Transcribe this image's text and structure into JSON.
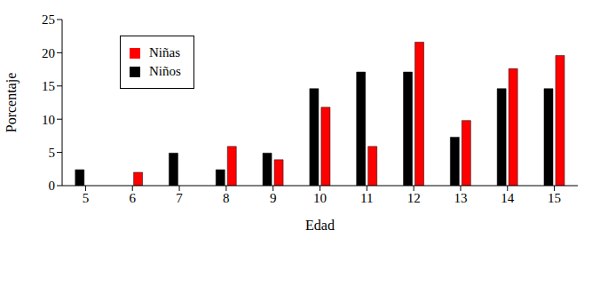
{
  "chart_data": {
    "type": "bar",
    "x_label": "Edad",
    "y_label": "Porcentaje",
    "categories": [
      "5",
      "6",
      "7",
      "8",
      "9",
      "10",
      "11",
      "12",
      "13",
      "14",
      "15"
    ],
    "series": [
      {
        "name": "Niños",
        "color": "#000000",
        "values": [
          2.4,
          0,
          4.9,
          2.4,
          4.9,
          14.6,
          17.1,
          17.1,
          7.3,
          14.6,
          14.6
        ]
      },
      {
        "name": "Niñas",
        "color": "#ff0000",
        "values": [
          0,
          2.0,
          0,
          5.9,
          3.9,
          11.8,
          5.9,
          21.6,
          9.8,
          17.6,
          19.6
        ]
      }
    ],
    "ylim": [
      0,
      25
    ],
    "yticks": [
      0,
      5,
      10,
      15,
      20,
      25
    ],
    "grid": false,
    "legend": "upper left"
  }
}
